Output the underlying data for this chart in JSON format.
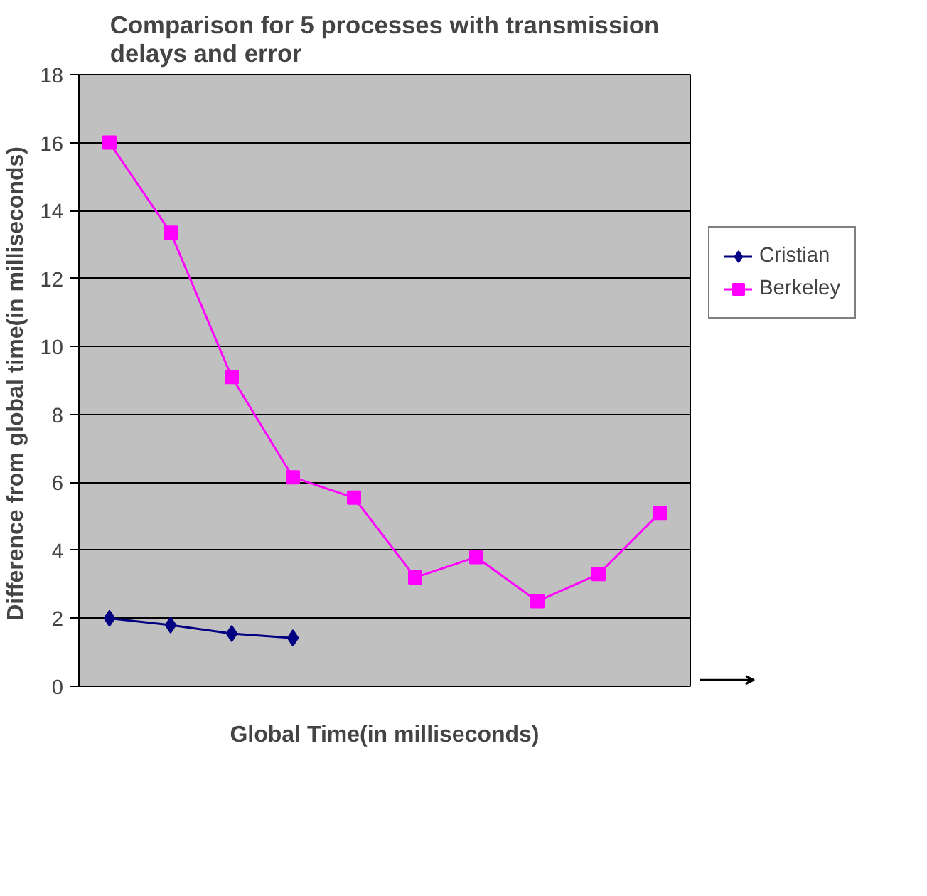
{
  "chart_data": {
    "type": "line",
    "title": "Comparison for 5 processes with transmission delays and error",
    "xlabel": "Global Time(in milliseconds)",
    "ylabel": "Difference  from global time(in milliseconds)",
    "categories": [
      null,
      null,
      null,
      null,
      null,
      null,
      null,
      null,
      null,
      null
    ],
    "series": [
      {
        "name": "Cristian",
        "color": "#000080",
        "marker": "diamond",
        "values": [
          2.0,
          1.8,
          1.55,
          1.42,
          null,
          null,
          null,
          null,
          null,
          null
        ]
      },
      {
        "name": "Berkeley",
        "color": "#ff00ff",
        "marker": "square",
        "values": [
          16.0,
          13.35,
          9.1,
          6.15,
          5.55,
          3.2,
          3.8,
          2.5,
          3.3,
          5.1
        ]
      }
    ],
    "ylim": [
      0,
      18
    ],
    "yticks": [
      0,
      2,
      4,
      6,
      8,
      10,
      12,
      14,
      16,
      18
    ],
    "grid": "y",
    "legend": "right",
    "line_style": "solid"
  }
}
